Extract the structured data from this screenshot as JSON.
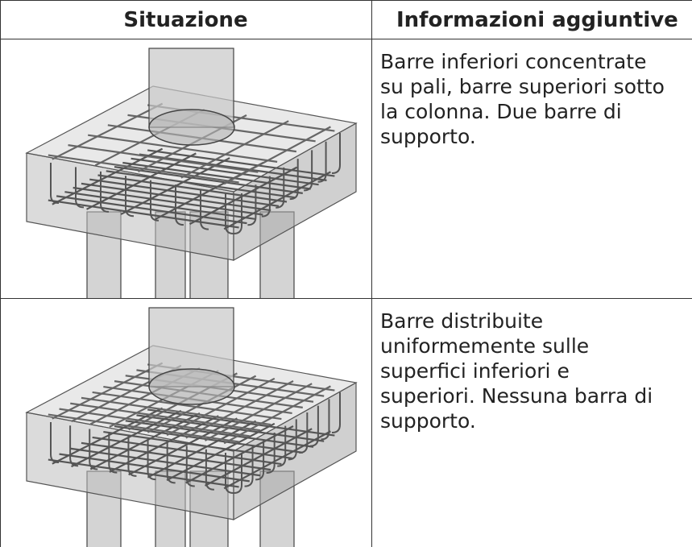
{
  "table": {
    "header": [
      "Situazione",
      "Informazioni aggiuntive"
    ],
    "rows": [
      {
        "lines": [
          "Barre inferiori concentrate",
          "su pali, barre superiori sotto",
          "la colonna. Due barre di",
          "supporto."
        ]
      },
      {
        "lines": [
          "Barre distribuite",
          "uniformemente sulle",
          "superfici inferiori e",
          "superiori. Nessuna barra di",
          "supporto."
        ]
      }
    ]
  }
}
